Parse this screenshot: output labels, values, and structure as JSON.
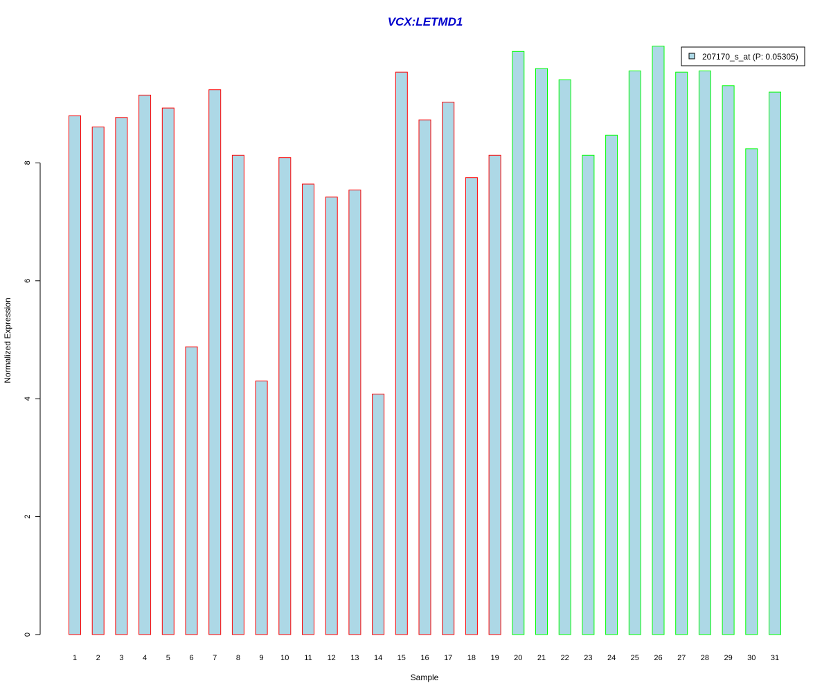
{
  "chart_data": {
    "type": "bar",
    "title": "VCX:LETMD1",
    "xlabel": "Sample",
    "ylabel": "Normalized Expression",
    "categories": [
      "1",
      "2",
      "3",
      "4",
      "5",
      "6",
      "7",
      "8",
      "9",
      "10",
      "11",
      "12",
      "13",
      "14",
      "15",
      "16",
      "17",
      "18",
      "19",
      "20",
      "21",
      "22",
      "23",
      "24",
      "25",
      "26",
      "27",
      "28",
      "29",
      "30",
      "31"
    ],
    "values": [
      8.8,
      8.61,
      8.77,
      9.15,
      8.93,
      4.88,
      9.24,
      8.13,
      4.3,
      8.09,
      7.64,
      7.42,
      7.54,
      4.08,
      9.54,
      8.73,
      9.03,
      7.75,
      8.13,
      9.89,
      9.6,
      9.41,
      8.13,
      8.47,
      9.56,
      9.98,
      9.54,
      9.56,
      9.31,
      8.24,
      9.2
    ],
    "groups": [
      "red",
      "red",
      "red",
      "red",
      "red",
      "red",
      "red",
      "red",
      "red",
      "red",
      "red",
      "red",
      "red",
      "red",
      "red",
      "red",
      "red",
      "red",
      "red",
      "green",
      "green",
      "green",
      "green",
      "green",
      "green",
      "green",
      "green",
      "green",
      "green",
      "green",
      "green"
    ],
    "yticks": [
      0,
      2,
      4,
      6,
      8
    ],
    "ylim": [
      0,
      10.07
    ],
    "grid": false,
    "legend": {
      "placement": "top-right",
      "label": "207170_s_at (P: 0.05305)"
    },
    "colors": {
      "bar_fill": "#add8e6",
      "group_red": "#ff0000",
      "group_green": "#00ff00",
      "title": "#0000cc"
    }
  }
}
